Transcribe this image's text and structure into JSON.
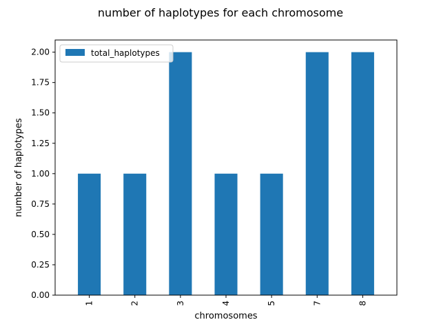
{
  "chart_data": {
    "type": "bar",
    "title": "number of haplotypes for each chromosome",
    "xlabel": "chromosomes",
    "ylabel": "number of haplotypes",
    "categories": [
      "1",
      "2",
      "3",
      "4",
      "5",
      "7",
      "8"
    ],
    "series": [
      {
        "name": "total_haplotypes",
        "values": [
          1,
          1,
          2,
          1,
          1,
          2,
          2
        ],
        "color": "#1f77b4"
      }
    ],
    "ylim": [
      0,
      2.1
    ],
    "yticks": [
      "0.00",
      "0.25",
      "0.50",
      "0.75",
      "1.00",
      "1.25",
      "1.50",
      "1.75",
      "2.00"
    ],
    "legend_position": "top-left",
    "grid": false
  }
}
